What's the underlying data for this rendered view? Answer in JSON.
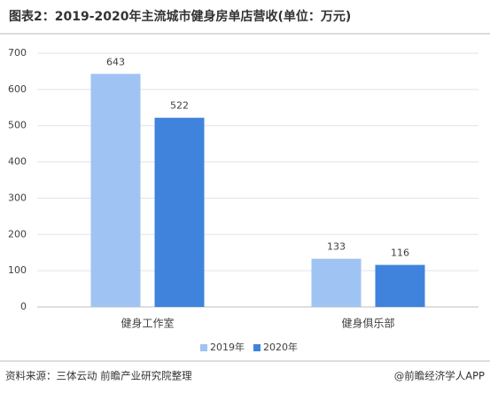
{
  "chart_data": {
    "type": "bar",
    "title": "图表2：2019-2020年主流城市健身房单店营收(单位：万元)",
    "categories": [
      "健身工作室",
      "健身俱乐部"
    ],
    "series": [
      {
        "name": "2019年",
        "color": "#9fc3f3",
        "values": [
          643,
          133
        ]
      },
      {
        "name": "2020年",
        "color": "#3f83dd",
        "values": [
          522,
          116
        ]
      }
    ],
    "ylim": [
      0,
      700
    ],
    "yticks": [
      0,
      100,
      200,
      300,
      400,
      500,
      600,
      700
    ],
    "grid": true,
    "legend": "bottom",
    "source": "资料来源：三体云动 前瞻产业研究院整理",
    "credit": "@前瞻经济学人APP"
  }
}
